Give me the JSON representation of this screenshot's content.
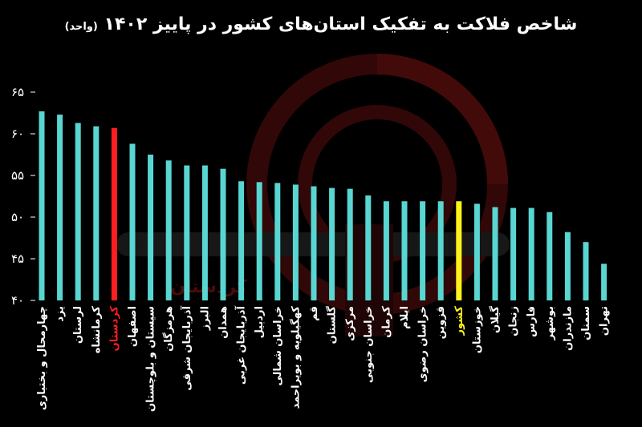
{
  "title": "شاخص فلاکت به تفکیک استان‌های کشور در پاییز ۱۴۰۲",
  "title_unit": "(واحد)",
  "watermark": "کردستان",
  "colors": {
    "background": "#000000",
    "bar_default": "#59d6d2",
    "bar_kurdistan": "#ff1e1e",
    "bar_country": "#fff21c",
    "watermark": "#8a1414",
    "text": "#ffffff"
  },
  "chart_data": {
    "type": "bar",
    "ylim": [
      40,
      65
    ],
    "yticks": [
      40,
      45,
      50,
      55,
      60,
      65
    ],
    "ytick_labels": [
      "۴۰",
      "۴۵",
      "۵۰",
      "۵۵",
      "۶۰",
      "۶۵"
    ],
    "grid": false,
    "categories": [
      "چهارمحال و بختیاری",
      "یزد",
      "لرستان",
      "کرمانشاه",
      "کردستان",
      "اصفهان",
      "سیستان و بلوچستان",
      "هرمزگان",
      "آذربایجان شرقی",
      "البرز",
      "همدان",
      "آذربایجان غربی",
      "اردبیل",
      "خراسان شمالی",
      "کهگیلویه و بویراحمد",
      "قم",
      "گلستان",
      "مرکزی",
      "خراسان جنوبی",
      "کرمان",
      "ایلام",
      "خراسان رضوی",
      "قزوین",
      "کشور",
      "خوزستان",
      "گیلان",
      "زنجان",
      "فارس",
      "بوشهر",
      "مازندران",
      "سمنان",
      "تهران"
    ],
    "values": [
      62.7,
      62.3,
      61.3,
      60.9,
      60.7,
      58.8,
      57.5,
      56.8,
      56.2,
      56.2,
      55.8,
      54.3,
      54.2,
      54.1,
      53.9,
      53.7,
      53.5,
      53.4,
      52.6,
      51.9,
      51.9,
      51.9,
      51.9,
      51.9,
      51.6,
      51.2,
      51.1,
      51.1,
      50.6,
      48.2,
      47.0,
      44.4
    ],
    "highlight": {
      "کردستان": "bar_kurdistan",
      "کشور": "bar_country"
    }
  }
}
